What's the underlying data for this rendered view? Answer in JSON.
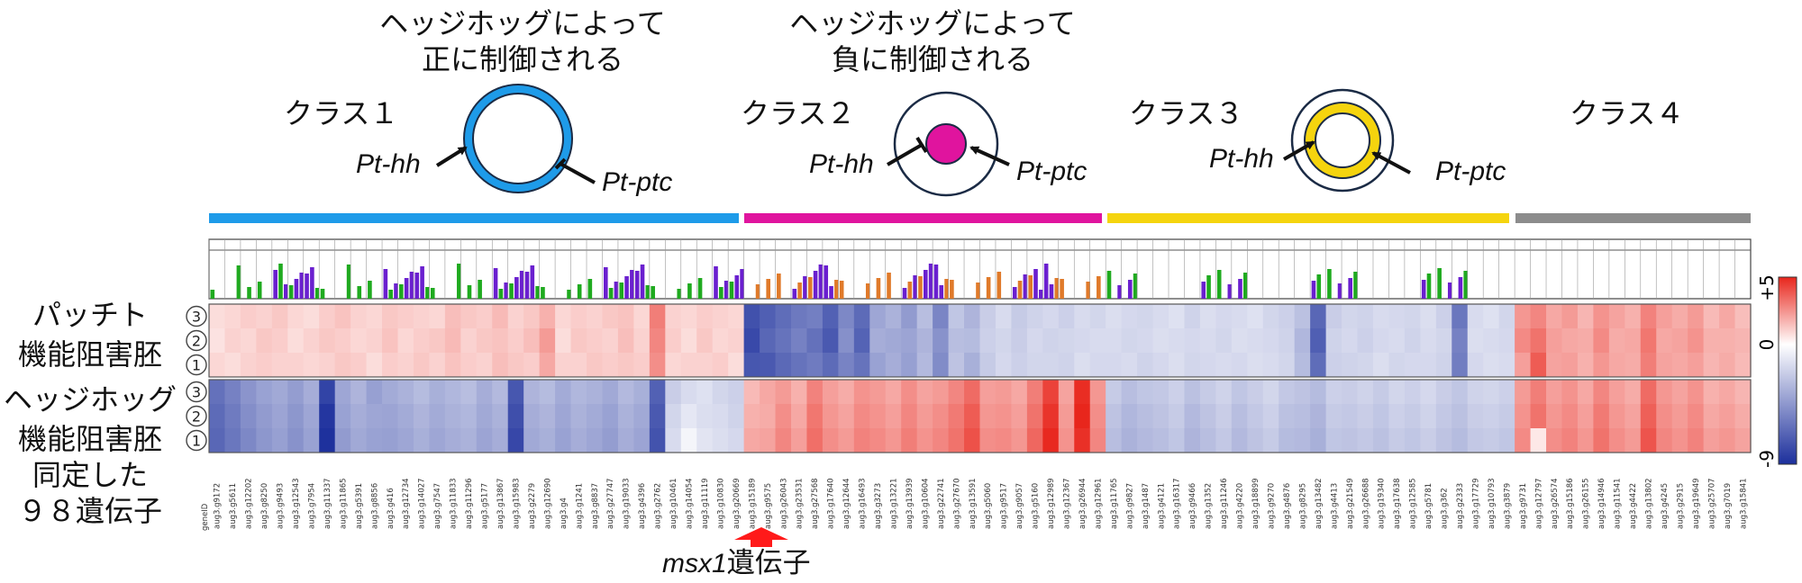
{
  "headers": {
    "positive_line1": "ヘッジホッグによって",
    "positive_line2": "正に制御される",
    "negative_line1": "ヘッジホッグによって",
    "negative_line2": "負に制御される"
  },
  "classes": [
    {
      "label": "クラス１",
      "color": "#1e9be9"
    },
    {
      "label": "クラス２",
      "color": "#e0149e"
    },
    {
      "label": "クラス３",
      "color": "#f5d40e"
    },
    {
      "label": "クラス４",
      "color": "#8c8c8c"
    }
  ],
  "gene_labels": {
    "hh": "Pt-hh",
    "ptc": "Pt-ptc"
  },
  "row_labels": {
    "patched_line1": "パッチト",
    "patched_line2": "機能阻害胚",
    "hedgehog_line1": "ヘッジホッグ",
    "hedgehog_line2": "機能阻害胚",
    "genes_line1": "同定した",
    "genes_line2": "９８遺伝子"
  },
  "replicates": [
    "③",
    "②",
    "①"
  ],
  "annotation": {
    "italic": "msx1",
    "text": "遺伝子",
    "arrow_color": "#ff1a1a"
  },
  "colorbar": {
    "max_label": "+5",
    "mid_label": "0",
    "min_label": "-9",
    "high": "#e8261c",
    "mid": "#ffffff",
    "low": "#1c2f9c"
  },
  "chart_data": {
    "type": "heatmap",
    "scale": {
      "min": -9,
      "max": 5
    },
    "gene_id_header": "geneID",
    "genes": [
      "aug3.g9172",
      "aug3.g5611",
      "aug3.g12202",
      "aug3.g8250",
      "aug3.g9493",
      "aug3.g12543",
      "aug3.g7954",
      "aug3.g11337",
      "aug3.g11865",
      "aug3.g5391",
      "aug3.g8856",
      "aug3.g416",
      "aug3.g12734",
      "aug3.g14027",
      "aug3.g7547",
      "aug3.g11833",
      "aug3.g11296",
      "aug3.g5177",
      "aug3.g13867",
      "aug3.g15983",
      "aug3.g2279",
      "aug3.g12690",
      "aug3.g4",
      "aug3.g1241",
      "aug3.g8837",
      "aug3.g27747",
      "aug3.g19033",
      "aug3.g4396",
      "aug3.g2762",
      "aug3.g10461",
      "aug3.g14054",
      "aug3.g11119",
      "aug3.g10830",
      "aug3.g20669",
      "aug3.g15189",
      "aug3.g9575",
      "aug3.g26043",
      "aug3.g23531",
      "aug3.g27568",
      "aug3.g17640",
      "aug3.g12644",
      "aug3.g16493",
      "aug3.g3273",
      "aug3.g13221",
      "aug3.g13939",
      "aug3.g10604",
      "aug3.g22741",
      "aug3.g27670",
      "aug3.g13591",
      "aug3.g5060",
      "aug3.g9517",
      "aug3.g9057",
      "aug3.g5160",
      "aug3.g12989",
      "aug3.g12367",
      "aug3.g26944",
      "aug3.g12961",
      "aug3.g11765",
      "aug3.g9827",
      "aug3.g1487",
      "aug3.g4121",
      "aug3.g16317",
      "aug3.g9466",
      "aug3.g1352",
      "aug3.g11246",
      "aug3.g4220",
      "aug3.g18899",
      "aug3.g9270",
      "aug3.g4876",
      "aug3.g8295",
      "aug3.g13482",
      "aug3.g4413",
      "aug3.g21549",
      "aug3.g26688",
      "aug3.g19340",
      "aug3.g17638",
      "aug3.g12585",
      "aug3.g5781",
      "aug3.g362",
      "aug3.g2333",
      "aug3.g17729",
      "aug3.g10793",
      "aug3.g3879",
      "aug3.g9731",
      "aug3.g12797",
      "aug3.g26574",
      "aug3.g15186",
      "aug3.g26155",
      "aug3.g14946",
      "aug3.g11541",
      "aug3.g4422",
      "aug3.g13802",
      "aug3.g4245",
      "aug3.g2915",
      "aug3.g19649",
      "aug3.g25707",
      "aug3.g7019",
      "aug3.g15841"
    ],
    "class_boundaries": [
      34,
      57,
      83
    ],
    "rows": [
      {
        "group": "patched",
        "replicate": "③",
        "values": [
          0.5,
          0.6,
          0.8,
          0.7,
          0.9,
          0.6,
          0.5,
          0.8,
          1.0,
          0.7,
          0.6,
          0.9,
          0.8,
          0.7,
          0.6,
          1.1,
          0.9,
          0.8,
          1.2,
          0.7,
          0.9,
          1.4,
          0.6,
          0.8,
          0.7,
          0.9,
          1.0,
          0.6,
          2.6,
          0.7,
          0.6,
          0.8,
          0.7,
          0.6,
          -7.2,
          -6.5,
          -5.8,
          -5.2,
          -4.9,
          -6.4,
          -4.5,
          -5.9,
          -3.1,
          -2.6,
          -3.6,
          -2.1,
          -4.6,
          -1.8,
          -2.5,
          -1.5,
          -1.0,
          -1.6,
          -1.3,
          -1.1,
          -1.4,
          -1.0,
          -1.2,
          -0.9,
          -1.1,
          -1.2,
          -1.0,
          -0.8,
          -1.3,
          -0.9,
          -1.1,
          -1.0,
          -0.8,
          -1.2,
          -1.4,
          -2.0,
          -6.1,
          -1.5,
          -1.2,
          -1.3,
          -1.0,
          -1.1,
          -1.2,
          -0.9,
          -1.4,
          -5.3,
          -1.0,
          -0.8,
          -1.2,
          2.0,
          2.4,
          1.6,
          1.9,
          1.3,
          2.1,
          1.7,
          1.4,
          2.5,
          1.8,
          1.5,
          1.9,
          1.2,
          1.6,
          1.1
        ]
      },
      {
        "group": "patched",
        "replicate": "②",
        "values": [
          0.4,
          0.7,
          0.6,
          0.9,
          0.8,
          0.5,
          0.7,
          0.9,
          0.8,
          0.6,
          0.7,
          1.0,
          0.6,
          0.8,
          0.9,
          1.2,
          0.7,
          0.9,
          1.0,
          0.8,
          1.1,
          1.9,
          0.5,
          0.9,
          0.8,
          0.7,
          1.1,
          0.7,
          2.4,
          0.8,
          0.5,
          0.9,
          0.6,
          0.7,
          -7.6,
          -6.1,
          -5.5,
          -4.8,
          -5.6,
          -6.8,
          -4.1,
          -6.3,
          -2.8,
          -3.0,
          -3.2,
          -2.5,
          -4.0,
          -2.1,
          -2.2,
          -1.4,
          -1.2,
          -1.5,
          -1.1,
          -1.3,
          -1.2,
          -1.1,
          -1.0,
          -1.0,
          -1.2,
          -1.1,
          -0.9,
          -1.0,
          -1.1,
          -1.0,
          -1.2,
          -0.9,
          -1.0,
          -1.1,
          -1.3,
          -2.4,
          -6.5,
          -1.3,
          -1.1,
          -1.4,
          -1.1,
          -1.0,
          -1.3,
          -1.0,
          -1.2,
          -4.8,
          -0.9,
          -1.0,
          -1.1,
          2.3,
          2.9,
          1.8,
          1.6,
          1.5,
          2.3,
          1.5,
          1.6,
          2.8,
          1.6,
          1.7,
          2.1,
          1.4,
          1.4,
          1.3
        ]
      },
      {
        "group": "patched",
        "replicate": "①",
        "values": [
          0.6,
          0.5,
          0.7,
          0.8,
          0.7,
          0.7,
          0.6,
          0.7,
          0.9,
          0.8,
          0.5,
          0.8,
          0.7,
          0.9,
          0.7,
          1.0,
          0.8,
          0.7,
          1.1,
          0.9,
          0.8,
          1.6,
          0.7,
          0.7,
          0.9,
          0.8,
          0.9,
          0.8,
          2.2,
          0.6,
          0.7,
          0.7,
          0.8,
          0.5,
          -6.9,
          -6.8,
          -6.0,
          -5.5,
          -5.1,
          -5.9,
          -4.7,
          -5.5,
          -3.3,
          -2.8,
          -3.4,
          -2.3,
          -4.3,
          -1.9,
          -2.7,
          -1.6,
          -1.1,
          -1.4,
          -1.2,
          -1.2,
          -1.3,
          -0.9,
          -1.1,
          -1.1,
          -1.0,
          -1.3,
          -1.1,
          -0.9,
          -1.2,
          -1.1,
          -1.0,
          -1.1,
          -0.9,
          -1.0,
          -1.2,
          -2.2,
          -5.8,
          -1.4,
          -1.3,
          -1.2,
          -0.9,
          -1.2,
          -1.1,
          -1.1,
          -1.3,
          -5.0,
          -1.1,
          -0.9,
          -1.0,
          1.8,
          3.5,
          1.7,
          1.8,
          1.4,
          2.0,
          1.6,
          1.5,
          2.6,
          1.7,
          1.6,
          1.8,
          1.3,
          1.5,
          1.2
        ]
      },
      {
        "group": "hedgehog",
        "replicate": "③",
        "values": [
          -5.6,
          -4.8,
          -3.9,
          -3.3,
          -3.0,
          -3.5,
          -2.8,
          -7.9,
          -3.1,
          -2.5,
          -3.4,
          -2.9,
          -2.6,
          -2.2,
          -2.7,
          -2.4,
          -2.1,
          -2.8,
          -2.3,
          -6.9,
          -2.5,
          -2.2,
          -2.9,
          -2.4,
          -2.6,
          -3.0,
          -2.3,
          -2.7,
          -6.4,
          -1.5,
          -1.0,
          -0.8,
          -1.2,
          -1.4,
          1.2,
          1.6,
          1.9,
          1.4,
          2.5,
          1.8,
          1.5,
          2.1,
          1.9,
          1.6,
          2.2,
          1.7,
          1.9,
          2.4,
          3.1,
          1.8,
          1.9,
          1.6,
          2.6,
          4.2,
          1.7,
          4.8,
          2.0,
          -1.6,
          -2.1,
          -1.8,
          -1.7,
          -1.4,
          -2.0,
          -1.6,
          -1.3,
          -1.8,
          -1.5,
          -1.2,
          -1.7,
          -1.9,
          -2.2,
          -1.4,
          -1.5,
          -1.3,
          -1.6,
          -1.2,
          -1.4,
          -1.1,
          -1.5,
          -1.8,
          -1.3,
          -1.2,
          -1.4,
          1.9,
          2.6,
          1.8,
          2.1,
          1.6,
          2.4,
          1.8,
          1.5,
          3.1,
          2.0,
          1.7,
          2.1,
          1.4,
          1.6,
          1.3
        ]
      },
      {
        "group": "hedgehog",
        "replicate": "②",
        "values": [
          -5.9,
          -5.1,
          -4.2,
          -3.6,
          -3.2,
          -3.8,
          -3.1,
          -8.6,
          -3.3,
          -2.8,
          -3.1,
          -3.2,
          -2.9,
          -2.5,
          -2.9,
          -2.6,
          -2.4,
          -3.0,
          -2.6,
          -7.3,
          -2.8,
          -2.5,
          -3.1,
          -2.6,
          -2.9,
          -3.3,
          -2.6,
          -3.0,
          -6.8,
          -1.2,
          -0.6,
          -0.9,
          -1.0,
          -1.3,
          1.4,
          1.5,
          2.2,
          1.6,
          2.8,
          2.0,
          1.7,
          2.3,
          2.1,
          1.8,
          2.4,
          1.9,
          2.2,
          2.7,
          3.5,
          2.0,
          2.1,
          1.8,
          2.9,
          4.6,
          1.9,
          5.0,
          2.2,
          -1.9,
          -2.4,
          -2.1,
          -1.9,
          -1.6,
          -2.3,
          -1.9,
          -1.5,
          -2.1,
          -1.7,
          -1.4,
          -2.0,
          -2.1,
          -2.5,
          -1.6,
          -1.7,
          -1.5,
          -1.8,
          -1.4,
          -1.6,
          -1.3,
          -1.7,
          -2.0,
          -1.5,
          -1.4,
          -1.6,
          2.1,
          2.9,
          2.0,
          2.3,
          1.8,
          2.7,
          2.0,
          1.7,
          3.4,
          2.2,
          1.9,
          2.3,
          1.6,
          1.8,
          1.5
        ]
      },
      {
        "group": "hedgehog",
        "replicate": "①",
        "values": [
          -6.1,
          -5.3,
          -4.5,
          -3.8,
          -3.4,
          -4.0,
          -3.3,
          -8.9,
          -3.6,
          -3.0,
          -3.3,
          -3.4,
          -3.1,
          -2.7,
          -3.1,
          -2.8,
          -2.6,
          -3.2,
          -2.8,
          -7.7,
          -3.0,
          -2.7,
          -3.3,
          -2.8,
          -3.1,
          -3.5,
          -2.8,
          -3.2,
          -7.1,
          -1.0,
          -0.2,
          -0.7,
          -0.9,
          -1.1,
          1.6,
          1.7,
          2.4,
          1.8,
          3.0,
          2.2,
          1.9,
          2.5,
          2.3,
          2.0,
          2.6,
          2.1,
          2.4,
          2.9,
          3.8,
          2.2,
          2.3,
          2.0,
          3.2,
          4.9,
          2.1,
          4.7,
          2.4,
          -2.1,
          -2.6,
          -2.3,
          -2.1,
          -1.8,
          -2.5,
          -2.1,
          -1.7,
          -2.3,
          -1.9,
          -1.6,
          -2.2,
          -2.3,
          -2.7,
          -1.8,
          -1.9,
          -1.7,
          -2.0,
          -1.6,
          -1.8,
          -1.5,
          -1.9,
          -2.2,
          -1.7,
          -1.6,
          -1.8,
          2.3,
          0.3,
          2.2,
          2.5,
          2.0,
          2.9,
          2.2,
          1.9,
          3.7,
          2.4,
          2.1,
          2.5,
          1.8,
          2.0,
          1.7
        ]
      }
    ]
  }
}
